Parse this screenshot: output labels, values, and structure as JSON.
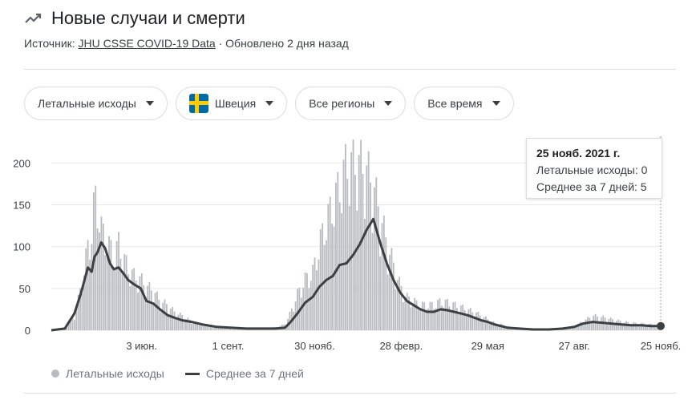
{
  "header": {
    "title": "Новые случаи и смерти",
    "source_prefix": "Источник:",
    "source_link": "JHU CSSE COVID-19 Data",
    "updated": "· Обновлено 2 дня назад",
    "icon": "trending-icon"
  },
  "filters": {
    "metric": "Летальные исходы",
    "country": "Швеция",
    "region": "Все регионы",
    "period": "Все время"
  },
  "tooltip": {
    "date": "25 нояб. 2021 г.",
    "deaths_line": "Летальные исходы: 0",
    "avg_line": "Среднее за 7 дней: 5"
  },
  "legend": {
    "deaths": "Летальные исходы",
    "average": "Среднее за 7 дней"
  },
  "colors": {
    "bars": "#b8bbc0",
    "avg_line": "#3c4043",
    "grid": "#e8e8e8"
  },
  "chart_data": {
    "type": "bar",
    "title": "",
    "ylim": [
      0,
      230
    ],
    "yticks": [
      0,
      50,
      100,
      150,
      200
    ],
    "x_range": [
      "2020-03-01",
      "2021-11-25"
    ],
    "xticks": [
      {
        "date": "2020-06-03",
        "label": "3 июн."
      },
      {
        "date": "2020-09-01",
        "label": "1 сент."
      },
      {
        "date": "2020-11-30",
        "label": "30 нояб."
      },
      {
        "date": "2021-02-28",
        "label": "28 февр."
      },
      {
        "date": "2021-05-29",
        "label": "29 мая"
      },
      {
        "date": "2021-08-27",
        "label": "27 авг."
      },
      {
        "date": "2021-11-25",
        "label": "25 нояб."
      }
    ],
    "series": [
      {
        "name": "Летальные исходы",
        "kind": "bars",
        "points": [
          [
            "2020-03-01",
            0
          ],
          [
            "2020-03-15",
            2
          ],
          [
            "2020-03-25",
            20
          ],
          [
            "2020-04-01",
            60
          ],
          [
            "2020-04-08",
            115
          ],
          [
            "2020-04-12",
            135
          ],
          [
            "2020-04-15",
            185
          ],
          [
            "2020-04-18",
            175
          ],
          [
            "2020-04-22",
            140
          ],
          [
            "2020-04-26",
            125
          ],
          [
            "2020-05-01",
            115
          ],
          [
            "2020-05-05",
            100
          ],
          [
            "2020-05-10",
            120
          ],
          [
            "2020-05-15",
            100
          ],
          [
            "2020-05-20",
            85
          ],
          [
            "2020-05-26",
            75
          ],
          [
            "2020-06-02",
            70
          ],
          [
            "2020-06-08",
            60
          ],
          [
            "2020-06-15",
            55
          ],
          [
            "2020-06-22",
            40
          ],
          [
            "2020-06-30",
            35
          ],
          [
            "2020-07-07",
            25
          ],
          [
            "2020-07-15",
            20
          ],
          [
            "2020-07-25",
            12
          ],
          [
            "2020-08-05",
            8
          ],
          [
            "2020-08-20",
            5
          ],
          [
            "2020-09-05",
            4
          ],
          [
            "2020-09-20",
            3
          ],
          [
            "2020-10-05",
            3
          ],
          [
            "2020-10-20",
            4
          ],
          [
            "2020-10-30",
            8
          ],
          [
            "2020-11-05",
            25
          ],
          [
            "2020-11-12",
            50
          ],
          [
            "2020-11-20",
            70
          ],
          [
            "2020-11-28",
            80
          ],
          [
            "2020-12-05",
            120
          ],
          [
            "2020-12-12",
            150
          ],
          [
            "2020-12-19",
            175
          ],
          [
            "2020-12-26",
            200
          ],
          [
            "2021-01-02",
            230
          ],
          [
            "2021-01-09",
            230
          ],
          [
            "2021-01-16",
            230
          ],
          [
            "2021-01-23",
            220
          ],
          [
            "2021-01-30",
            200
          ],
          [
            "2021-02-06",
            160
          ],
          [
            "2021-02-13",
            120
          ],
          [
            "2021-02-20",
            90
          ],
          [
            "2021-02-27",
            60
          ],
          [
            "2021-03-06",
            45
          ],
          [
            "2021-03-13",
            40
          ],
          [
            "2021-03-20",
            35
          ],
          [
            "2021-03-27",
            35
          ],
          [
            "2021-04-03",
            35
          ],
          [
            "2021-04-10",
            40
          ],
          [
            "2021-04-17",
            38
          ],
          [
            "2021-04-24",
            35
          ],
          [
            "2021-05-01",
            32
          ],
          [
            "2021-05-08",
            28
          ],
          [
            "2021-05-15",
            25
          ],
          [
            "2021-05-22",
            20
          ],
          [
            "2021-05-29",
            15
          ],
          [
            "2021-06-05",
            10
          ],
          [
            "2021-06-12",
            8
          ],
          [
            "2021-06-19",
            5
          ],
          [
            "2021-07-01",
            3
          ],
          [
            "2021-07-15",
            2
          ],
          [
            "2021-08-01",
            2
          ],
          [
            "2021-08-15",
            3
          ],
          [
            "2021-08-27",
            6
          ],
          [
            "2021-09-05",
            12
          ],
          [
            "2021-09-15",
            20
          ],
          [
            "2021-09-25",
            18
          ],
          [
            "2021-10-05",
            15
          ],
          [
            "2021-10-15",
            12
          ],
          [
            "2021-10-25",
            10
          ],
          [
            "2021-11-05",
            9
          ],
          [
            "2021-11-15",
            8
          ],
          [
            "2021-11-25",
            0
          ]
        ]
      },
      {
        "name": "Среднее за 7 дней",
        "kind": "line",
        "points": [
          [
            "2020-03-01",
            0
          ],
          [
            "2020-03-15",
            2
          ],
          [
            "2020-03-25",
            20
          ],
          [
            "2020-04-01",
            45
          ],
          [
            "2020-04-08",
            75
          ],
          [
            "2020-04-12",
            70
          ],
          [
            "2020-04-15",
            88
          ],
          [
            "2020-04-18",
            93
          ],
          [
            "2020-04-22",
            105
          ],
          [
            "2020-04-26",
            98
          ],
          [
            "2020-05-01",
            80
          ],
          [
            "2020-05-05",
            73
          ],
          [
            "2020-05-10",
            75
          ],
          [
            "2020-05-15",
            68
          ],
          [
            "2020-05-20",
            60
          ],
          [
            "2020-05-26",
            55
          ],
          [
            "2020-06-02",
            50
          ],
          [
            "2020-06-08",
            35
          ],
          [
            "2020-06-15",
            32
          ],
          [
            "2020-06-22",
            25
          ],
          [
            "2020-06-30",
            18
          ],
          [
            "2020-07-07",
            15
          ],
          [
            "2020-07-15",
            12
          ],
          [
            "2020-07-25",
            10
          ],
          [
            "2020-08-05",
            7
          ],
          [
            "2020-08-20",
            4
          ],
          [
            "2020-09-05",
            3
          ],
          [
            "2020-09-20",
            2
          ],
          [
            "2020-10-05",
            2
          ],
          [
            "2020-10-20",
            2
          ],
          [
            "2020-10-30",
            3
          ],
          [
            "2020-11-05",
            10
          ],
          [
            "2020-11-12",
            20
          ],
          [
            "2020-11-20",
            33
          ],
          [
            "2020-11-28",
            40
          ],
          [
            "2020-12-05",
            52
          ],
          [
            "2020-12-12",
            60
          ],
          [
            "2020-12-19",
            65
          ],
          [
            "2020-12-26",
            78
          ],
          [
            "2021-01-02",
            80
          ],
          [
            "2021-01-09",
            90
          ],
          [
            "2021-01-16",
            103
          ],
          [
            "2021-01-23",
            120
          ],
          [
            "2021-01-30",
            133
          ],
          [
            "2021-02-06",
            105
          ],
          [
            "2021-02-13",
            80
          ],
          [
            "2021-02-20",
            60
          ],
          [
            "2021-02-27",
            45
          ],
          [
            "2021-03-06",
            35
          ],
          [
            "2021-03-13",
            30
          ],
          [
            "2021-03-20",
            25
          ],
          [
            "2021-03-27",
            22
          ],
          [
            "2021-04-03",
            22
          ],
          [
            "2021-04-10",
            25
          ],
          [
            "2021-04-17",
            24
          ],
          [
            "2021-04-24",
            22
          ],
          [
            "2021-05-01",
            20
          ],
          [
            "2021-05-08",
            18
          ],
          [
            "2021-05-15",
            15
          ],
          [
            "2021-05-22",
            12
          ],
          [
            "2021-05-29",
            10
          ],
          [
            "2021-06-05",
            7
          ],
          [
            "2021-06-12",
            5
          ],
          [
            "2021-06-19",
            3
          ],
          [
            "2021-07-01",
            2
          ],
          [
            "2021-07-15",
            1
          ],
          [
            "2021-08-01",
            1
          ],
          [
            "2021-08-15",
            2
          ],
          [
            "2021-08-27",
            4
          ],
          [
            "2021-09-05",
            8
          ],
          [
            "2021-09-15",
            10
          ],
          [
            "2021-09-25",
            9
          ],
          [
            "2021-10-05",
            8
          ],
          [
            "2021-10-15",
            7
          ],
          [
            "2021-10-25",
            6
          ],
          [
            "2021-11-05",
            6
          ],
          [
            "2021-11-15",
            5
          ],
          [
            "2021-11-25",
            5
          ]
        ]
      }
    ]
  }
}
